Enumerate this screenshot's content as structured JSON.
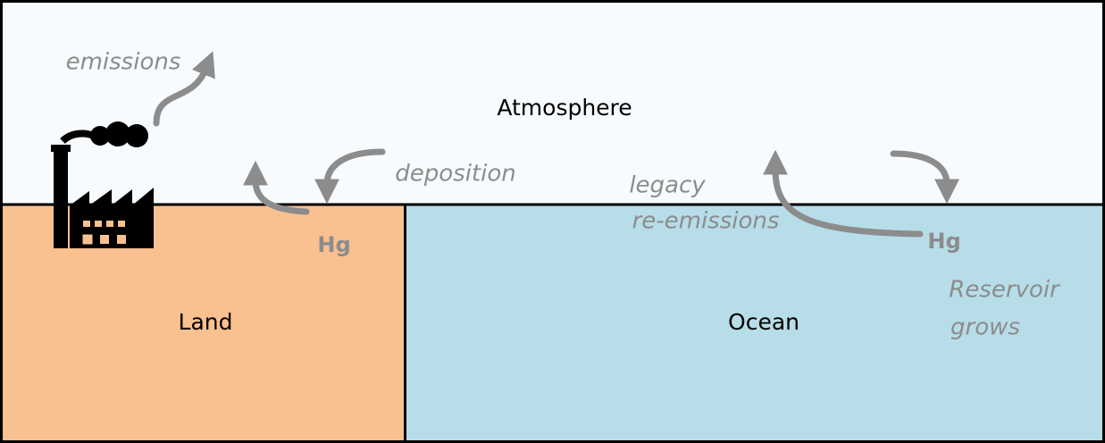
{
  "regions": {
    "atmosphere": "Atmosphere",
    "land": "Land",
    "ocean": "Ocean"
  },
  "flows": {
    "emissions": "emissions",
    "deposition": "deposition",
    "legacy": [
      "legacy",
      "re-emissions"
    ]
  },
  "reservoirs": {
    "land_hg": "Hg",
    "ocean_hg": "Hg",
    "ocean_note": [
      "Reservoir",
      "grows"
    ]
  }
}
